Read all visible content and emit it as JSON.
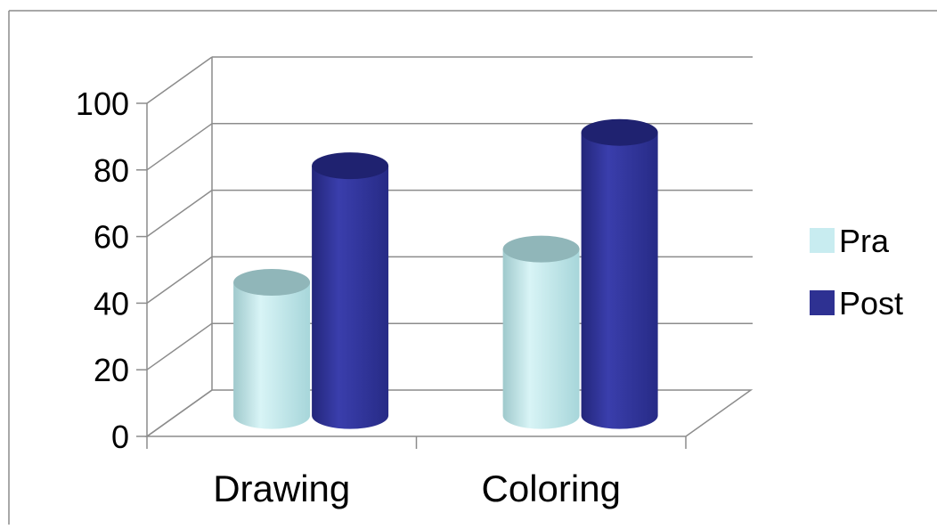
{
  "chart_data": {
    "type": "bar",
    "style": "3d-cylinder",
    "categories": [
      "Drawing",
      "Coloring"
    ],
    "series": [
      {
        "name": "Pra",
        "values": [
          40,
          50
        ],
        "color": "#c8ecf0"
      },
      {
        "name": "Post",
        "values": [
          75,
          85
        ],
        "color": "#2e3192"
      }
    ],
    "y_ticks": [
      "0",
      "20",
      "40",
      "60",
      "80",
      "100"
    ],
    "ylim": [
      0,
      100
    ],
    "grid": true,
    "legend_position": "right"
  }
}
